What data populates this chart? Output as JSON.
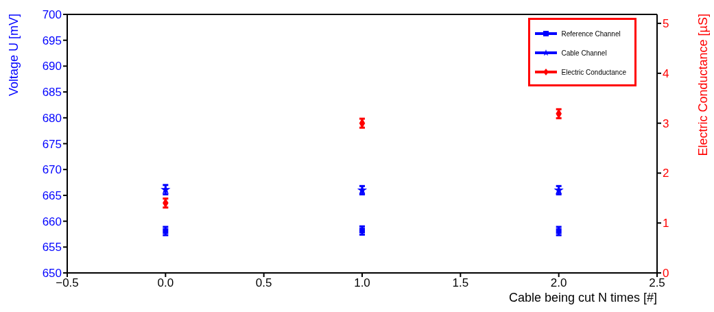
{
  "chart_data": {
    "type": "scatter",
    "xlabel": "Cable being cut N times [#]",
    "ylabel": "Voltage U [mV]",
    "y2label": "Electric Conductance [µS]",
    "x": [
      0,
      1,
      2
    ],
    "xlim": [
      -0.5,
      2.5
    ],
    "xticks": [
      {
        "value": -0.5,
        "label": "−0.5"
      },
      {
        "value": 0,
        "label": "0.0"
      },
      {
        "value": 0.5,
        "label": "0.5"
      },
      {
        "value": 1,
        "label": "1.0"
      },
      {
        "value": 1.5,
        "label": "1.5"
      },
      {
        "value": 2,
        "label": "2.0"
      },
      {
        "value": 2.5,
        "label": "2.5"
      }
    ],
    "ylim": [
      650,
      700
    ],
    "yticks": [
      650,
      655,
      660,
      665,
      670,
      675,
      680,
      685,
      690,
      695,
      700
    ],
    "y2lim": [
      0,
      5.18
    ],
    "y2ticks": [
      0,
      1,
      2,
      3,
      4,
      5
    ],
    "legend": "top right",
    "grid": false,
    "series": [
      {
        "name": "Reference Channel",
        "color": "#0000ff",
        "marker": "square",
        "values": [
          658.1,
          658.2,
          658.1
        ],
        "errors": [
          0.8,
          0.8,
          0.8
        ]
      },
      {
        "name": "Cable Channel",
        "color": "#0000ff",
        "marker": "star",
        "values": [
          666.1,
          666.0,
          666.0
        ],
        "errors": [
          0.9,
          0.8,
          0.8
        ]
      },
      {
        "name": "Electric Conductance",
        "color": "#ff0000",
        "marker": "diamond",
        "axis": "y2",
        "values": [
          1.4,
          3.0,
          3.19
        ],
        "errors": [
          0.09,
          0.09,
          0.09
        ]
      }
    ]
  }
}
